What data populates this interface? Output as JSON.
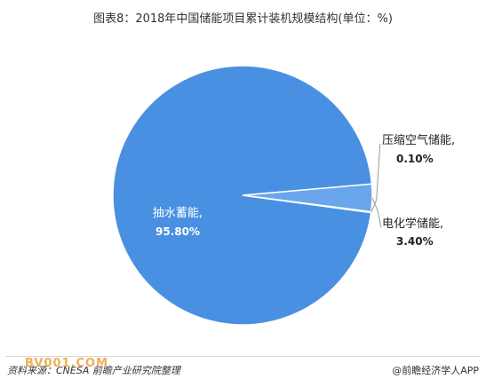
{
  "title": "图表8：2018年中国储能项目累计装机规模结构(单位：%)",
  "chart_data": {
    "type": "pie",
    "title": "图表8：2018年中国储能项目累计装机规模结构(单位：%)",
    "slices": [
      {
        "label": "抽水蓄能,",
        "value": 95.8,
        "display": "95.80%",
        "color": "#4a90e2"
      },
      {
        "label": "电化学储能,",
        "value": 3.4,
        "display": "3.40%",
        "color": "#6aa6ec"
      },
      {
        "label": "压缩空气储能,",
        "value": 0.1,
        "display": "0.10%",
        "color": "#7fb3ef"
      }
    ]
  },
  "footer": {
    "source": "资料来源：CNESA 前瞻产业研究院整理",
    "brand": "@前瞻经济学人APP",
    "site": "BV001.COM"
  }
}
